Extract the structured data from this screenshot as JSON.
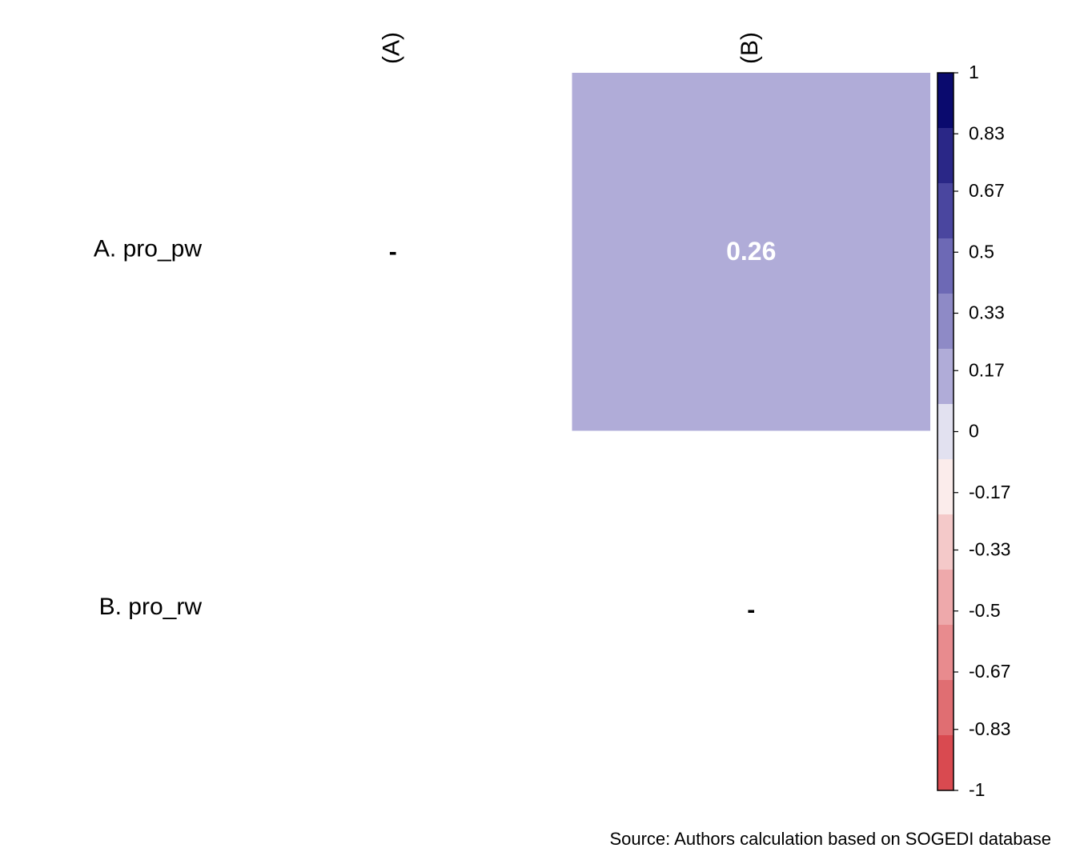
{
  "chart_data": {
    "type": "heatmap",
    "rows": [
      "A. pro_pw",
      "B. pro_rw"
    ],
    "columns": [
      "(A)",
      "(B)"
    ],
    "cells": [
      {
        "row": 0,
        "col": 0,
        "value": null,
        "label": "-"
      },
      {
        "row": 0,
        "col": 1,
        "value": 0.26,
        "label": "0.26"
      },
      {
        "row": 1,
        "col": 1,
        "value": null,
        "label": "-"
      }
    ],
    "colorbar": {
      "ticks": [
        "1",
        "0.83",
        "0.67",
        "0.5",
        "0.33",
        "0.17",
        "0",
        "-0.17",
        "-0.33",
        "-0.5",
        "-0.67",
        "-0.83",
        "-1"
      ],
      "tick_values": [
        1,
        0.83,
        0.67,
        0.5,
        0.33,
        0.17,
        0,
        -0.17,
        -0.33,
        -0.5,
        -0.67,
        -0.83,
        -1
      ],
      "range": [
        -1,
        1
      ],
      "bin_colors_top_to_bottom": [
        "#0a0a6e",
        "#2a2787",
        "#4a469f",
        "#6d69b5",
        "#8e8ac6",
        "#b0acd8",
        "#e2e1f0",
        "#fbeceb",
        "#f4c9c9",
        "#eea9ab",
        "#e88b8e",
        "#e06e72",
        "#d94a50"
      ]
    },
    "cell_color": "#b0acd8",
    "cell_label_color": "#ffffff",
    "caption": "Source: Authors calculation based on SOGEDI database"
  }
}
